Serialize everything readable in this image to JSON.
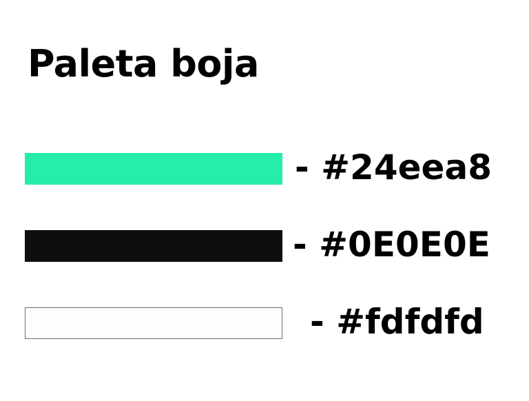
{
  "title": "Paleta boja",
  "colors": [
    {
      "label": "- #24eea8",
      "hex": "#24eea8"
    },
    {
      "label": "- #0E0E0E",
      "hex": "#0E0E0E"
    },
    {
      "label": "- #fdfdfd",
      "hex": "#fdfdfd"
    }
  ]
}
